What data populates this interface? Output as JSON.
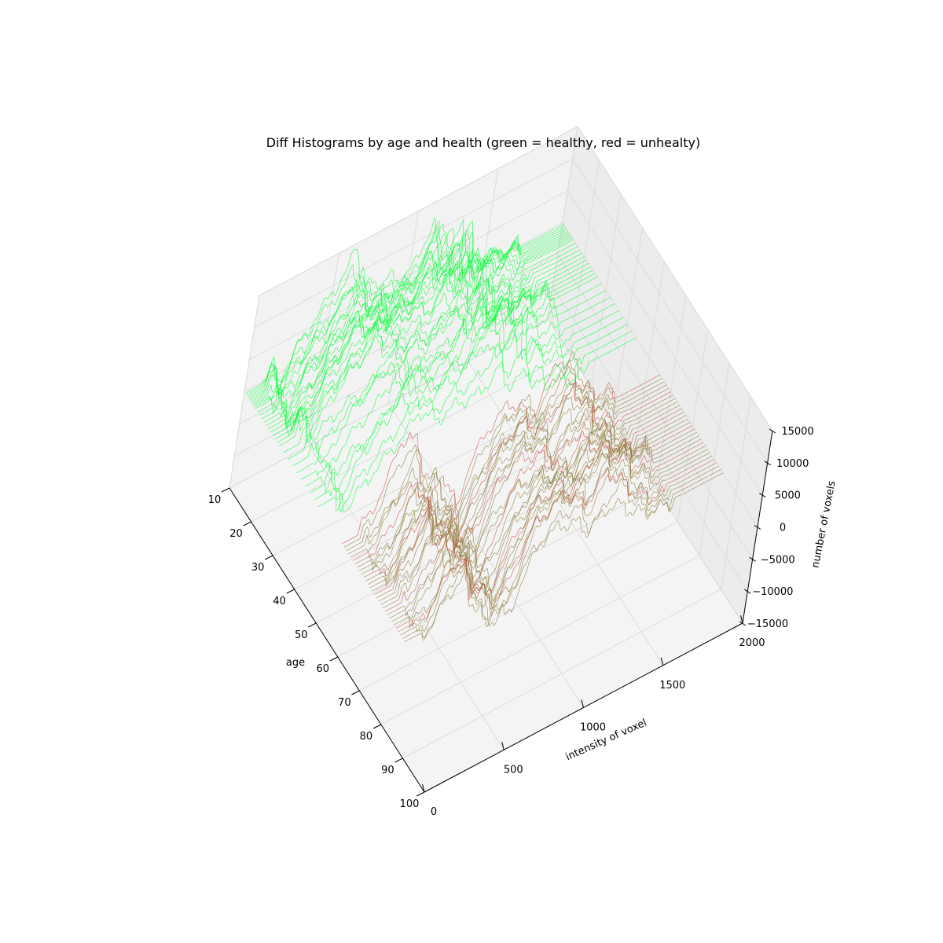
{
  "chart_data": {
    "type": "line",
    "projection": "3d",
    "title": "Diff Histograms by age and health (green = healthy, red = unhealty)",
    "xlabel": "intensity of voxel",
    "ylabel": "age",
    "zlabel": "number of voxels",
    "xlim": [
      0,
      2000
    ],
    "ylim": [
      10,
      100
    ],
    "zlim": [
      -15000,
      15000
    ],
    "x_ticks": [
      "0",
      "500",
      "1000",
      "1500",
      "2000"
    ],
    "y_ticks": [
      "10",
      "20",
      "30",
      "40",
      "50",
      "60",
      "70",
      "80",
      "90",
      "100"
    ],
    "z_ticks": [
      "−15000",
      "−10000",
      "−5000",
      "0",
      "5000",
      "10000",
      "15000"
    ],
    "grid": true,
    "series": [
      {
        "group": "healthy",
        "color": "#00ff33",
        "ages": [
          10.5,
          11.0,
          11.5,
          12.0,
          12.5,
          13.0,
          13.5,
          14.0,
          14.5,
          15.0,
          16.0,
          17.0,
          18.0,
          19.0,
          20.0,
          21.0,
          22.0,
          23.0,
          24.0,
          25.0,
          26.0,
          28.0,
          30.0,
          32.0,
          34.0,
          36.0,
          38.0,
          40.0,
          42.0,
          44.0
        ],
        "profile_x": [
          0,
          50,
          100,
          150,
          200,
          250,
          300,
          350,
          400,
          450,
          500,
          550,
          600,
          650,
          700,
          750,
          800,
          850,
          900,
          950,
          1000,
          1050,
          1100,
          1150,
          1200,
          1250,
          1300,
          1350,
          1400,
          1450,
          1500,
          1550,
          1600,
          1650,
          1700,
          1750,
          1800,
          1850,
          1900,
          1950,
          2000
        ],
        "profile_z": [
          0,
          0,
          200,
          1500,
          -3000,
          -500,
          2000,
          3500,
          5000,
          6500,
          8000,
          10000,
          12500,
          9500,
          6500,
          5500,
          6000,
          7000,
          6500,
          6000,
          7000,
          9500,
          12500,
          7500,
          5000,
          7000,
          9000,
          2000,
          3000,
          2000,
          1500,
          1000,
          500,
          300,
          200,
          100,
          50,
          0,
          0,
          0,
          0
        ]
      },
      {
        "group": "unhealthy",
        "color": "#8a7a38",
        "ages": [
          55.0,
          56.0,
          57.0,
          58.0,
          59.0,
          60.0,
          61.0,
          62.0,
          63.0,
          64.0,
          65.0,
          66.0,
          67.0,
          68.0,
          69.0,
          70.0,
          71.0,
          72.0,
          73.0,
          74.0,
          75.0,
          76.0,
          77.0,
          78.0,
          79.0,
          80.0,
          81.0,
          82.0,
          83.0,
          84.0
        ],
        "profile_x": [
          0,
          50,
          100,
          150,
          200,
          250,
          300,
          350,
          400,
          450,
          500,
          550,
          600,
          650,
          700,
          750,
          800,
          850,
          900,
          950,
          1000,
          1050,
          1100,
          1150,
          1200,
          1250,
          1300,
          1350,
          1400,
          1450,
          1500,
          1550,
          1600,
          1650,
          1700,
          1750,
          1800,
          1850,
          1900,
          1950,
          2000
        ],
        "profile_z": [
          0,
          0,
          0,
          500,
          2500,
          6000,
          9000,
          11000,
          9000,
          6000,
          2000,
          -2000,
          -5000,
          -7500,
          -6000,
          -1500,
          3000,
          6000,
          7500,
          8500,
          9000,
          8500,
          7000,
          4000,
          6000,
          9000,
          11000,
          9000,
          7000,
          5000,
          3000,
          2000,
          1000,
          500,
          200,
          0,
          0,
          0,
          0,
          0,
          0
        ]
      }
    ]
  }
}
